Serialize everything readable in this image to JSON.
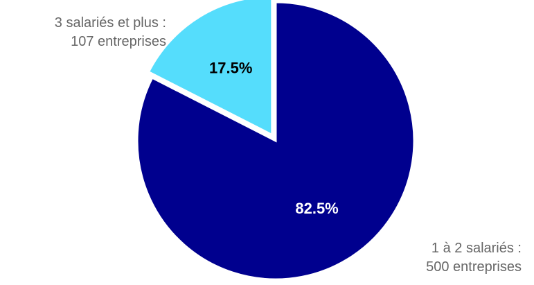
{
  "chart_data": {
    "type": "pie",
    "categories": [
      "3 salariés et plus",
      "1 à 2 salariés"
    ],
    "values": [
      17.5,
      82.5
    ],
    "counts": [
      107,
      500
    ],
    "value_labels": [
      "17.5%",
      "82.5%"
    ],
    "category_labels": [
      {
        "line1": "3 salariés et plus :",
        "line2": "107 entreprises"
      },
      {
        "line1": "1 à 2 salariés :",
        "line2": "500 entreprises"
      }
    ],
    "colors": [
      "#55DDFC",
      "#00008E"
    ],
    "value_label_colors": [
      "#000000",
      "#FFFFFF"
    ],
    "exploded_slice": "3 salariés et plus",
    "title": "",
    "legend": "none"
  }
}
